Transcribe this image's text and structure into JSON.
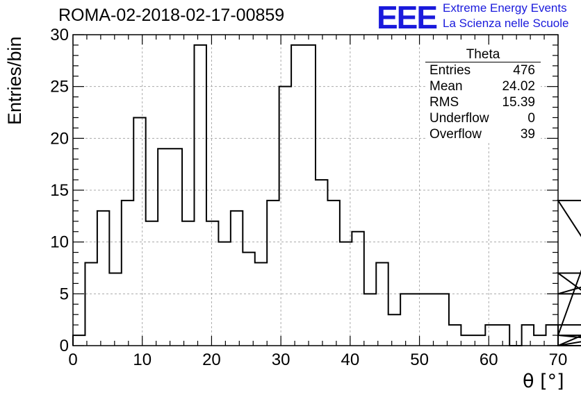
{
  "title": "ROMA-02-2018-02-17-00859",
  "logo": {
    "mark": "EEE",
    "line1": "Extreme Energy Events",
    "line2": "La Scienza nelle Scuole",
    "color": "#1a1adc"
  },
  "stats_box": {
    "title": "Theta",
    "rows": [
      {
        "label": "Entries",
        "value": "476"
      },
      {
        "label": "Mean",
        "value": "24.02"
      },
      {
        "label": "RMS",
        "value": "15.39"
      },
      {
        "label": "Underflow",
        "value": "0"
      },
      {
        "label": "Overflow",
        "value": "39"
      }
    ]
  },
  "chart_data": {
    "type": "bar",
    "style": "step-histogram",
    "xlabel": "θ [°]",
    "ylabel": "Entries/bin",
    "xlim": [
      0,
      70
    ],
    "ylim": [
      0,
      30
    ],
    "xticks": [
      0,
      10,
      20,
      30,
      40,
      50,
      60,
      70
    ],
    "yticks": [
      0,
      5,
      10,
      15,
      20,
      25,
      30
    ],
    "grid": true,
    "bin_width": 1.75,
    "bin_edges_start": 0,
    "values": [
      1,
      8,
      13,
      7,
      14,
      22,
      12,
      19,
      19,
      12,
      29,
      12,
      10,
      13,
      9,
      8,
      14,
      25,
      29,
      29,
      16,
      14,
      10,
      11,
      5,
      8,
      3,
      5,
      5,
      5,
      5,
      2,
      1,
      1,
      2,
      2,
      0,
      2,
      1,
      2,
      0,
      0,
      1,
      1,
      14,
      5,
      7,
      1,
      1,
      0,
      2
    ],
    "line_color": "#000000"
  }
}
